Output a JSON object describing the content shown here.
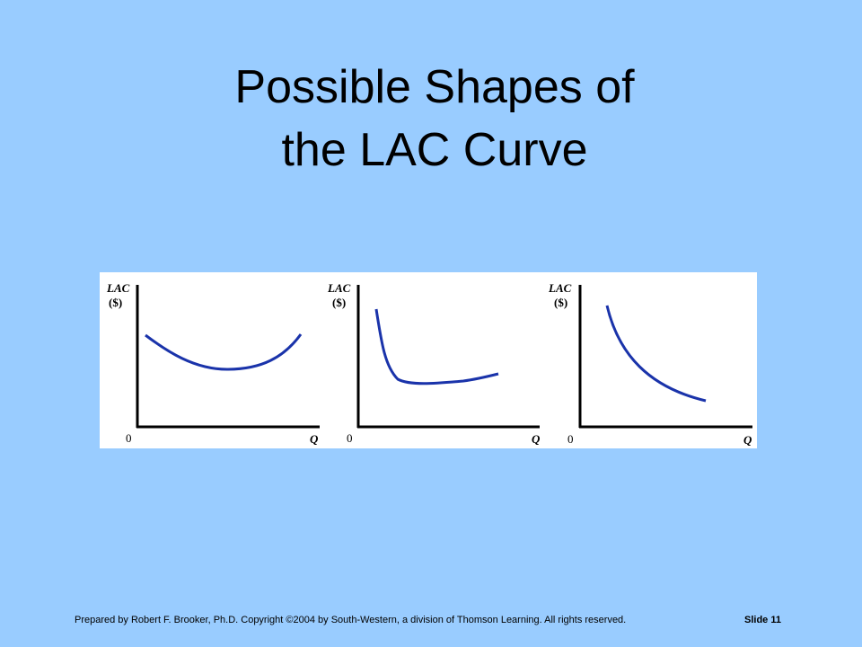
{
  "slide": {
    "title_line1": "Possible Shapes of",
    "title_line2": "the LAC Curve",
    "footer_credit": "Prepared by Robert F. Brooker, Ph.D.   Copyright ©2004 by South-Western, a division of Thomson Learning.  All rights reserved.",
    "slide_number": "Slide 11"
  },
  "diagrams": [
    {
      "y_label": "LAC",
      "y_unit": "($)",
      "origin": "0",
      "x_label": "Q",
      "shape": "u-shaped"
    },
    {
      "y_label": "LAC",
      "y_unit": "($)",
      "origin": "0",
      "x_label": "Q",
      "shape": "l-shaped"
    },
    {
      "y_label": "LAC",
      "y_unit": "($)",
      "origin": "0",
      "x_label": "Q",
      "shape": "downward-sloping"
    }
  ],
  "colors": {
    "background": "#99ccff",
    "curve": "#1a33aa",
    "axis": "#000000"
  }
}
